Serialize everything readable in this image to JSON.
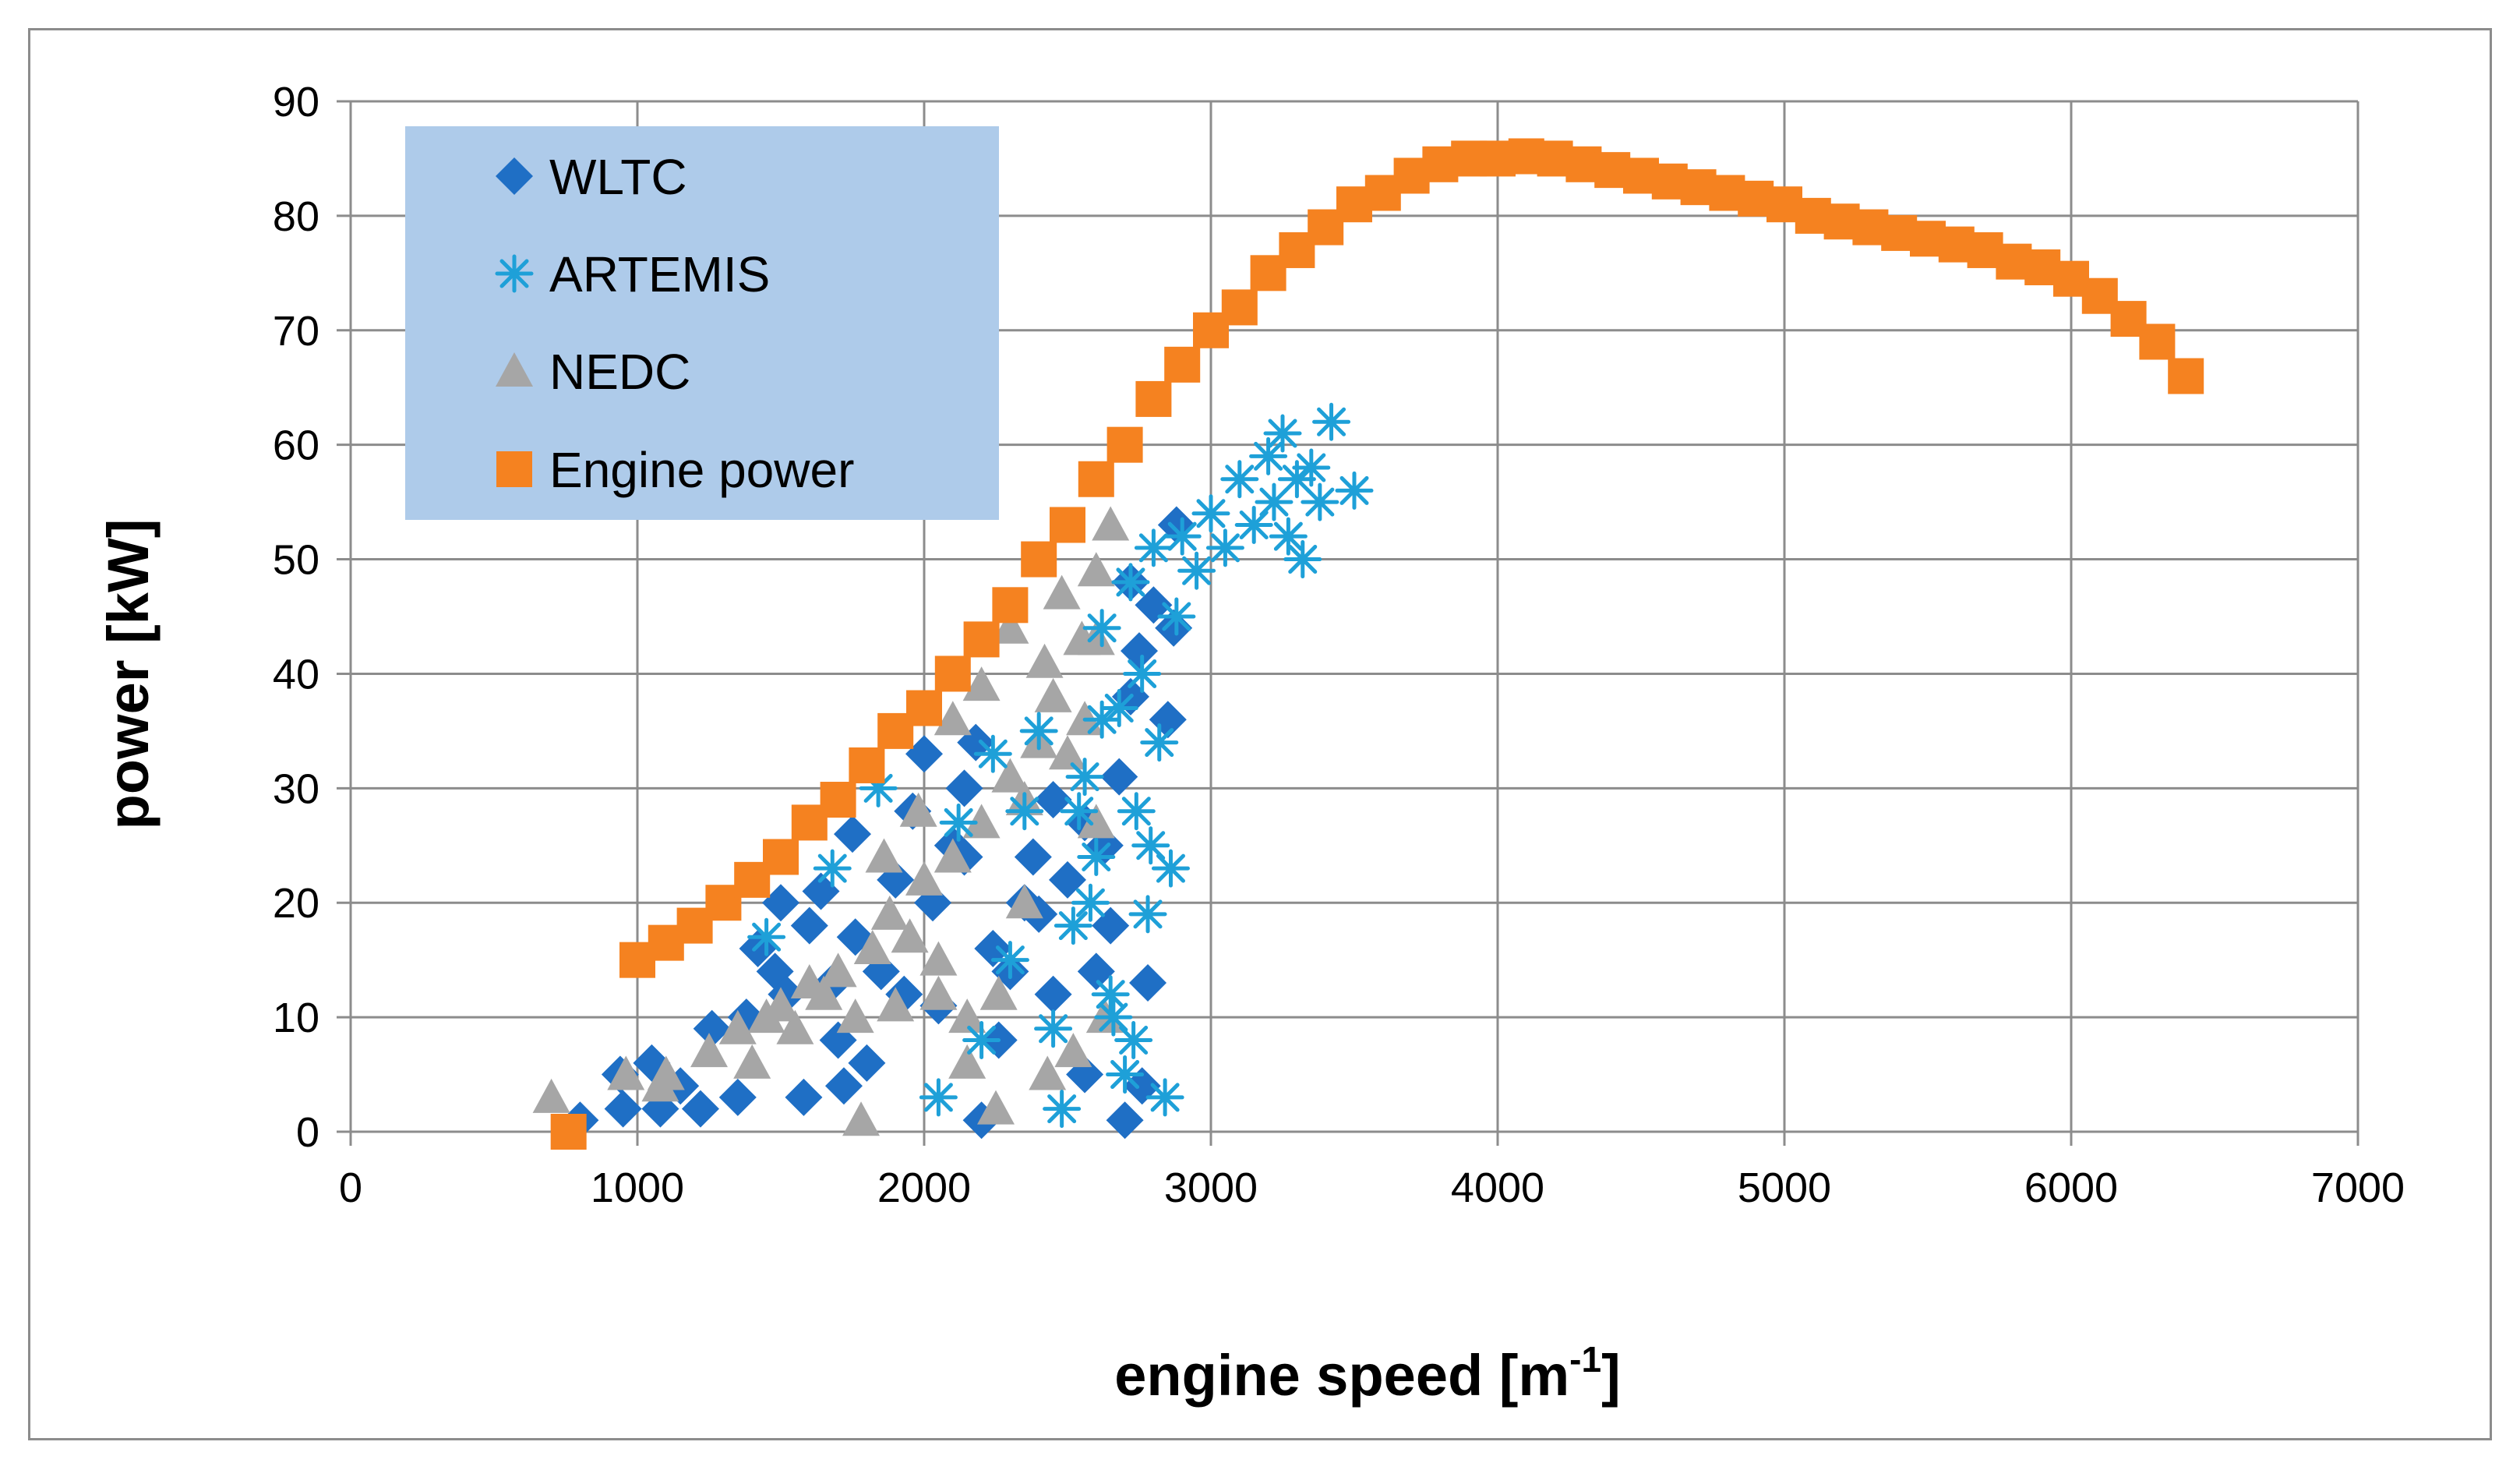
{
  "chart_data": {
    "type": "scatter",
    "title": "",
    "xlabel": "engine speed [m",
    "xlabel_sup": "-1",
    "xlabel_suffix": "]",
    "ylabel": "power [kW]",
    "xlim": [
      0,
      7000
    ],
    "ylim": [
      0,
      90
    ],
    "xticks": [
      0,
      1000,
      2000,
      3000,
      4000,
      5000,
      6000,
      7000
    ],
    "yticks": [
      0,
      10,
      20,
      30,
      40,
      50,
      60,
      70,
      80,
      90
    ],
    "grid": true,
    "legend_position": "top-left",
    "series": [
      {
        "name": "WLTC",
        "marker": "diamond",
        "color": "#1f6fc5",
        "points": [
          [
            800,
            1
          ],
          [
            940,
            5
          ],
          [
            950,
            2
          ],
          [
            1050,
            6
          ],
          [
            1080,
            2
          ],
          [
            1150,
            4
          ],
          [
            1220,
            2
          ],
          [
            1260,
            9
          ],
          [
            1350,
            3
          ],
          [
            1380,
            10
          ],
          [
            1420,
            16
          ],
          [
            1480,
            14
          ],
          [
            1500,
            20
          ],
          [
            1520,
            12
          ],
          [
            1580,
            3
          ],
          [
            1600,
            18
          ],
          [
            1640,
            21
          ],
          [
            1680,
            13
          ],
          [
            1700,
            8
          ],
          [
            1720,
            4
          ],
          [
            1750,
            26
          ],
          [
            1760,
            17
          ],
          [
            1800,
            6
          ],
          [
            1850,
            14
          ],
          [
            1900,
            22
          ],
          [
            1960,
            28
          ],
          [
            2000,
            33
          ],
          [
            2050,
            11
          ],
          [
            2100,
            25
          ],
          [
            2140,
            30
          ],
          [
            2180,
            34
          ],
          [
            2200,
            1
          ],
          [
            2260,
            8
          ],
          [
            2300,
            14
          ],
          [
            2380,
            24
          ],
          [
            2400,
            19
          ],
          [
            2450,
            29
          ],
          [
            2500,
            22
          ],
          [
            2560,
            5
          ],
          [
            2600,
            14
          ],
          [
            2630,
            25
          ],
          [
            2680,
            31
          ],
          [
            2700,
            1
          ],
          [
            2720,
            38
          ],
          [
            2750,
            42
          ],
          [
            2780,
            13
          ],
          [
            2800,
            46
          ],
          [
            2850,
            36
          ],
          [
            2880,
            53
          ],
          [
            2760,
            4
          ],
          [
            2650,
            18
          ],
          [
            2560,
            27
          ],
          [
            2450,
            12
          ],
          [
            2350,
            20
          ],
          [
            2240,
            16
          ],
          [
            2140,
            24
          ],
          [
            2030,
            20
          ],
          [
            1930,
            12
          ],
          [
            2870,
            44
          ],
          [
            2720,
            48
          ]
        ]
      },
      {
        "name": "ARTEMIS",
        "marker": "asterisk",
        "color": "#1ea0d8",
        "points": [
          [
            1450,
            17
          ],
          [
            1680,
            23
          ],
          [
            1840,
            30
          ],
          [
            2050,
            3
          ],
          [
            2120,
            27
          ],
          [
            2200,
            8
          ],
          [
            2240,
            33
          ],
          [
            2300,
            15
          ],
          [
            2350,
            28
          ],
          [
            2400,
            35
          ],
          [
            2450,
            9
          ],
          [
            2480,
            2
          ],
          [
            2520,
            18
          ],
          [
            2560,
            31
          ],
          [
            2600,
            24
          ],
          [
            2620,
            44
          ],
          [
            2650,
            12
          ],
          [
            2680,
            37
          ],
          [
            2700,
            5
          ],
          [
            2720,
            48
          ],
          [
            2740,
            28
          ],
          [
            2760,
            40
          ],
          [
            2780,
            19
          ],
          [
            2800,
            51
          ],
          [
            2820,
            34
          ],
          [
            2840,
            3
          ],
          [
            2860,
            23
          ],
          [
            2880,
            45
          ],
          [
            2900,
            52
          ],
          [
            2950,
            49
          ],
          [
            3000,
            54
          ],
          [
            3050,
            51
          ],
          [
            3100,
            57
          ],
          [
            3150,
            53
          ],
          [
            3200,
            59
          ],
          [
            3220,
            55
          ],
          [
            3250,
            61
          ],
          [
            3270,
            52
          ],
          [
            3300,
            57
          ],
          [
            3320,
            50
          ],
          [
            3350,
            58
          ],
          [
            3380,
            55
          ],
          [
            3420,
            62
          ],
          [
            3500,
            56
          ],
          [
            2580,
            20
          ],
          [
            2660,
            10
          ],
          [
            2730,
            8
          ],
          [
            2790,
            25
          ],
          [
            2620,
            36
          ],
          [
            2540,
            28
          ]
        ]
      },
      {
        "name": "NEDC",
        "marker": "triangle",
        "color": "#a6a6a6",
        "points": [
          [
            700,
            3
          ],
          [
            960,
            5
          ],
          [
            1080,
            4
          ],
          [
            1100,
            5
          ],
          [
            1250,
            7
          ],
          [
            1350,
            9
          ],
          [
            1400,
            6
          ],
          [
            1450,
            10
          ],
          [
            1500,
            11
          ],
          [
            1550,
            9
          ],
          [
            1600,
            13
          ],
          [
            1650,
            12
          ],
          [
            1700,
            14
          ],
          [
            1760,
            10
          ],
          [
            1780,
            1
          ],
          [
            1820,
            16
          ],
          [
            1880,
            19
          ],
          [
            1900,
            11
          ],
          [
            1950,
            17
          ],
          [
            2000,
            22
          ],
          [
            2050,
            15
          ],
          [
            2100,
            24
          ],
          [
            2150,
            10
          ],
          [
            2150,
            6
          ],
          [
            2200,
            27
          ],
          [
            2250,
            2
          ],
          [
            2260,
            12
          ],
          [
            2300,
            31
          ],
          [
            2350,
            29
          ],
          [
            2400,
            34
          ],
          [
            2430,
            5
          ],
          [
            2450,
            38
          ],
          [
            2500,
            33
          ],
          [
            2520,
            7
          ],
          [
            2550,
            43
          ],
          [
            2560,
            36
          ],
          [
            2600,
            43
          ],
          [
            2600,
            27
          ],
          [
            2600,
            49
          ],
          [
            2630,
            10
          ],
          [
            2650,
            53
          ],
          [
            2200,
            39
          ],
          [
            2300,
            44
          ],
          [
            2100,
            36
          ],
          [
            1980,
            28
          ],
          [
            1860,
            24
          ],
          [
            2420,
            41
          ],
          [
            2480,
            47
          ],
          [
            2350,
            20
          ],
          [
            2050,
            12
          ]
        ]
      },
      {
        "name": "Engine power",
        "marker": "square",
        "color": "#f58220",
        "points": [
          [
            760,
            0
          ],
          [
            1000,
            15
          ],
          [
            1100,
            16.5
          ],
          [
            1200,
            18
          ],
          [
            1300,
            20
          ],
          [
            1400,
            22
          ],
          [
            1500,
            24
          ],
          [
            1600,
            27
          ],
          [
            1700,
            29
          ],
          [
            1800,
            32
          ],
          [
            1900,
            35
          ],
          [
            2000,
            37
          ],
          [
            2100,
            40
          ],
          [
            2200,
            43
          ],
          [
            2300,
            46
          ],
          [
            2400,
            50
          ],
          [
            2500,
            53
          ],
          [
            2600,
            57
          ],
          [
            2700,
            60
          ],
          [
            2800,
            64
          ],
          [
            2900,
            67
          ],
          [
            3000,
            70
          ],
          [
            3100,
            72
          ],
          [
            3200,
            75
          ],
          [
            3300,
            77
          ],
          [
            3400,
            79
          ],
          [
            3500,
            81
          ],
          [
            3600,
            82
          ],
          [
            3700,
            83.5
          ],
          [
            3800,
            84.5
          ],
          [
            3900,
            85
          ],
          [
            4000,
            85
          ],
          [
            4100,
            85.2
          ],
          [
            4200,
            85
          ],
          [
            4300,
            84.5
          ],
          [
            4400,
            84
          ],
          [
            4500,
            83.5
          ],
          [
            4600,
            83
          ],
          [
            4700,
            82.5
          ],
          [
            4800,
            82
          ],
          [
            4900,
            81.5
          ],
          [
            5000,
            81
          ],
          [
            5100,
            80
          ],
          [
            5200,
            79.5
          ],
          [
            5300,
            79
          ],
          [
            5400,
            78.5
          ],
          [
            5500,
            78
          ],
          [
            5600,
            77.5
          ],
          [
            5700,
            77
          ],
          [
            5800,
            76
          ],
          [
            5900,
            75.5
          ],
          [
            6000,
            74.5
          ],
          [
            6100,
            73
          ],
          [
            6200,
            71
          ],
          [
            6300,
            69
          ],
          [
            6400,
            66
          ]
        ]
      }
    ]
  }
}
